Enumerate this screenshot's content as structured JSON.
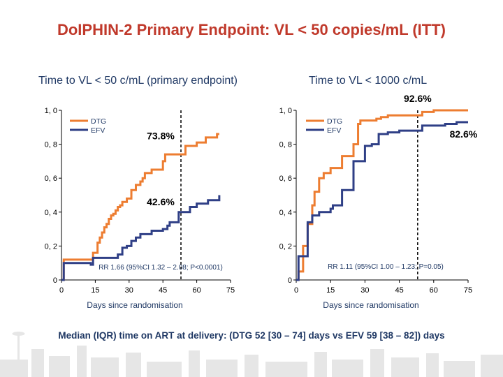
{
  "title": "DoIPHIN-2 Primary Endpoint: VL < 50 copies/mL (ITT)",
  "footnote": "Median (IQR) time on ART at delivery: (DTG 52 [30 – 74] days vs EFV 59 [38 – 82]) days",
  "colors": {
    "dtg": "#ed7d31",
    "efv": "#2f3f86",
    "title": "#c0392b",
    "text": "#1f3864"
  },
  "chart_data": [
    {
      "type": "line",
      "step": true,
      "title": "Time to VL < 50 c/mL (primary endpoint)",
      "xlabel": "Days since randomisation",
      "ylabel": "",
      "xlim": [
        0,
        75
      ],
      "ylim": [
        0,
        1.0
      ],
      "x_ticks": [
        "0",
        "15",
        "30",
        "45",
        "60",
        "75"
      ],
      "y_ticks": [
        "0",
        "0, 2",
        "0, 4",
        "0, 6",
        "0, 8",
        "1, 0"
      ],
      "vline_x": 53,
      "annotation": "RR 1.66 (95%CI 1.32 – 2.08; P<0.0001)",
      "legend": [
        "DTG",
        "EFV"
      ],
      "series": [
        {
          "name": "DTG",
          "x": [
            0,
            1,
            7,
            14,
            15,
            16,
            17,
            18,
            19,
            20,
            21,
            22,
            23,
            24,
            25,
            26,
            27,
            29,
            31,
            33,
            35,
            36,
            37,
            40,
            45,
            46,
            48,
            55,
            60,
            64,
            69,
            70
          ],
          "y": [
            0,
            0.12,
            0.12,
            0.16,
            0.16,
            0.22,
            0.25,
            0.28,
            0.31,
            0.33,
            0.36,
            0.38,
            0.39,
            0.41,
            0.43,
            0.44,
            0.46,
            0.48,
            0.53,
            0.56,
            0.58,
            0.6,
            0.63,
            0.65,
            0.7,
            0.74,
            0.74,
            0.79,
            0.81,
            0.84,
            0.86,
            0.86
          ]
        },
        {
          "name": "EFV",
          "x": [
            0,
            1,
            5,
            10,
            13,
            14,
            15,
            20,
            25,
            27,
            29,
            31,
            33,
            35,
            38,
            40,
            45,
            47,
            48,
            52,
            55,
            57,
            60,
            65,
            70
          ],
          "y": [
            0,
            0.1,
            0.1,
            0.1,
            0.09,
            0.13,
            0.13,
            0.13,
            0.15,
            0.19,
            0.2,
            0.23,
            0.25,
            0.27,
            0.27,
            0.29,
            0.3,
            0.32,
            0.34,
            0.4,
            0.4,
            0.43,
            0.45,
            0.47,
            0.5
          ]
        }
      ],
      "labels": [
        {
          "text": "73.8%",
          "x": 44,
          "y": 0.83
        },
        {
          "text": "42.6%",
          "x": 44,
          "y": 0.44
        }
      ]
    },
    {
      "type": "line",
      "step": true,
      "title": "Time to VL < 1000 c/mL",
      "xlabel": "Days since randomisation",
      "ylabel": "",
      "xlim": [
        0,
        75
      ],
      "ylim": [
        0,
        1.0
      ],
      "x_ticks": [
        "0",
        "15",
        "30",
        "45",
        "60",
        "75"
      ],
      "y_ticks": [
        "0",
        "0, 2",
        "0, 4",
        "0, 6",
        "0, 8",
        "1, 0"
      ],
      "vline_x": 53,
      "annotation": "RR 1.11 (95%CI 1.00 – 1.23; P=0.05)",
      "legend": [
        "DTG",
        "EFV"
      ],
      "series": [
        {
          "name": "DTG",
          "x": [
            0,
            1,
            3,
            5,
            7,
            8,
            10,
            12,
            15,
            20,
            25,
            27,
            28,
            35,
            37,
            40,
            45,
            52,
            55,
            60,
            65,
            75
          ],
          "y": [
            0,
            0.05,
            0.2,
            0.33,
            0.44,
            0.52,
            0.6,
            0.63,
            0.66,
            0.73,
            0.8,
            0.92,
            0.94,
            0.95,
            0.96,
            0.97,
            0.97,
            0.97,
            0.99,
            1.0,
            1.0,
            1.0
          ]
        },
        {
          "name": "EFV",
          "x": [
            0,
            1,
            5,
            7,
            10,
            15,
            16,
            20,
            25,
            30,
            33,
            35,
            36,
            40,
            45,
            50,
            55,
            60,
            65,
            70,
            75
          ],
          "y": [
            0,
            0.14,
            0.34,
            0.38,
            0.4,
            0.42,
            0.44,
            0.53,
            0.7,
            0.79,
            0.8,
            0.8,
            0.86,
            0.87,
            0.88,
            0.88,
            0.91,
            0.91,
            0.92,
            0.93,
            0.93
          ]
        }
      ],
      "labels": [
        {
          "text": "92.6%",
          "x": 53,
          "y": 1.05
        },
        {
          "text": "82.6%",
          "x": 73,
          "y": 0.84
        }
      ]
    }
  ]
}
